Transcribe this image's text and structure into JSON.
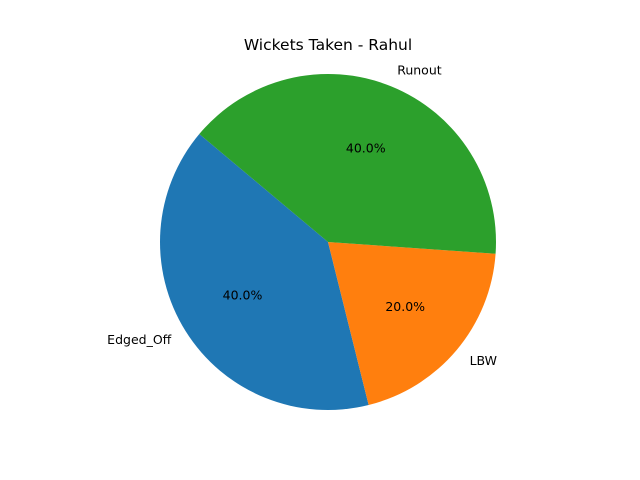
{
  "chart_data": {
    "type": "pie",
    "title": "Wickets Taken - Rahul",
    "slices": [
      {
        "label": "Edged_Off",
        "value": 40,
        "pct_label": "40.0%",
        "color": "#1f77b4"
      },
      {
        "label": "LBW",
        "value": 20,
        "pct_label": "20.0%",
        "color": "#ff7f0e"
      },
      {
        "label": "Runout",
        "value": 40,
        "pct_label": "40.0%",
        "color": "#2ca02c"
      }
    ],
    "start_angle_deg": 140,
    "direction": "counterclockwise"
  }
}
